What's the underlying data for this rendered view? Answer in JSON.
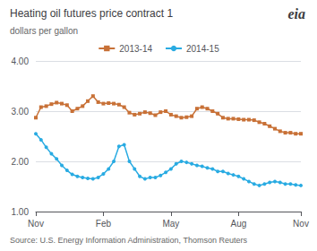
{
  "chart_data": {
    "type": "line",
    "title": "Heating oil futures price contract 1",
    "subtitle": "dollars per gallon",
    "source": "Source: U.S. Energy Information Administration, Thomson Reuters",
    "annotations": [
      "eia"
    ],
    "x": [
      0,
      2,
      4,
      6,
      8,
      10,
      12,
      14,
      16,
      18,
      20,
      22,
      24,
      26,
      28,
      30,
      32,
      34,
      36,
      38,
      40,
      42,
      44,
      46,
      48,
      50,
      52,
      54,
      56,
      58,
      60,
      62,
      64,
      66,
      68,
      70,
      72,
      74,
      76,
      78,
      80,
      82,
      84,
      86,
      88,
      90,
      92,
      94,
      96,
      98,
      100,
      102
    ],
    "series": [
      {
        "name": "2013-14",
        "color": "#C87137",
        "marker": "square",
        "values": [
          2.87,
          3.08,
          3.1,
          3.14,
          3.17,
          3.15,
          3.12,
          3.0,
          3.05,
          3.1,
          3.2,
          3.3,
          3.18,
          3.15,
          3.16,
          3.15,
          3.13,
          3.08,
          2.97,
          2.93,
          2.95,
          2.98,
          2.96,
          2.92,
          2.98,
          3.0,
          2.93,
          2.9,
          2.87,
          2.88,
          2.9,
          3.05,
          3.08,
          3.05,
          3.0,
          2.95,
          2.87,
          2.85,
          2.85,
          2.84,
          2.83,
          2.83,
          2.82,
          2.78,
          2.75,
          2.7,
          2.65,
          2.6,
          2.57,
          2.57,
          2.55,
          2.55
        ]
      },
      {
        "name": "2014-15",
        "color": "#29ABE2",
        "marker": "circle",
        "values": [
          2.55,
          2.43,
          2.28,
          2.15,
          2.05,
          1.92,
          1.82,
          1.74,
          1.7,
          1.68,
          1.66,
          1.65,
          1.68,
          1.75,
          1.85,
          2.0,
          2.3,
          2.33,
          2.0,
          1.85,
          1.7,
          1.65,
          1.68,
          1.68,
          1.72,
          1.78,
          1.85,
          1.95,
          2.0,
          1.98,
          1.95,
          1.92,
          1.9,
          1.87,
          1.85,
          1.8,
          1.8,
          1.76,
          1.73,
          1.7,
          1.65,
          1.6,
          1.55,
          1.52,
          1.55,
          1.58,
          1.6,
          1.58,
          1.55,
          1.55,
          1.53,
          1.52
        ]
      }
    ],
    "xlim": [
      0,
      102
    ],
    "xticks": [
      {
        "value": 0,
        "label": "Nov"
      },
      {
        "value": 26,
        "label": "Feb"
      },
      {
        "value": 52,
        "label": "May"
      },
      {
        "value": 78,
        "label": "Aug"
      },
      {
        "value": 102,
        "label": "Nov"
      }
    ],
    "ylim": [
      1.0,
      4.0
    ],
    "yticks": [
      {
        "value": 1.0,
        "label": "1.00"
      },
      {
        "value": 2.0,
        "label": "2.00"
      },
      {
        "value": 3.0,
        "label": "3.00"
      },
      {
        "value": 4.0,
        "label": "4.00"
      }
    ],
    "grid": true,
    "legend": "upper center"
  }
}
